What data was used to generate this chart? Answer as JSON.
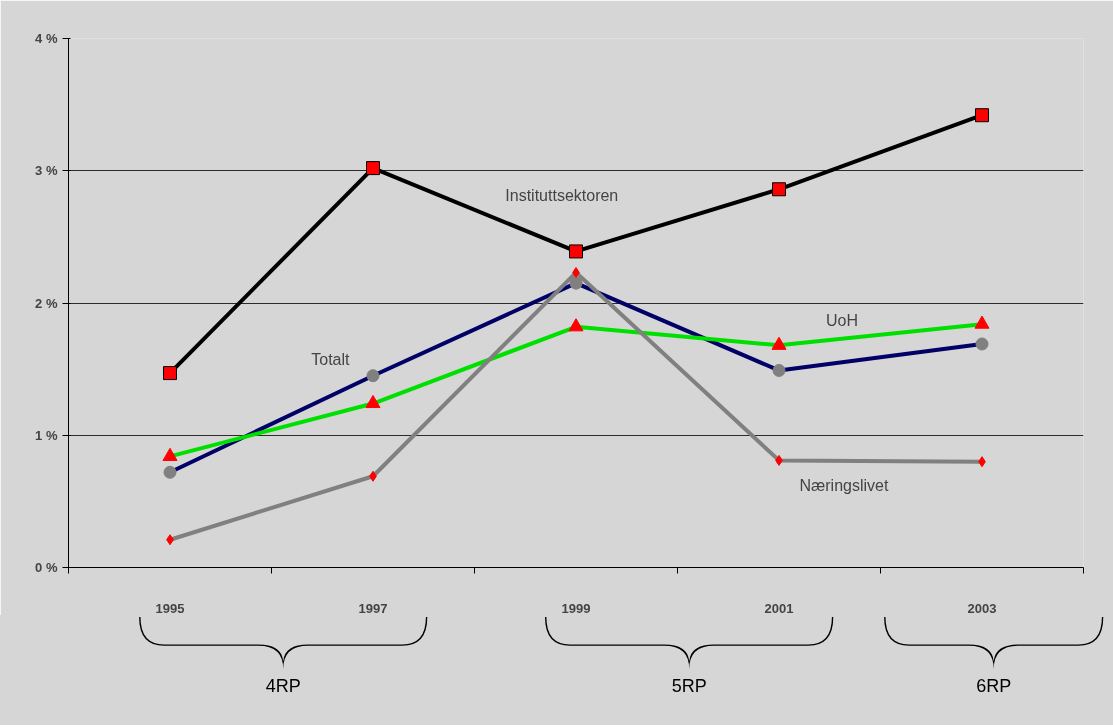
{
  "chart_data": {
    "type": "line",
    "categories": [
      "1995",
      "1997",
      "1999",
      "2001",
      "2003"
    ],
    "series": [
      {
        "name": "Instituttsektoren",
        "color": "#000000",
        "marker": "square",
        "values": [
          1.47,
          3.02,
          2.39,
          2.86,
          3.42
        ]
      },
      {
        "name": "Totalt",
        "color": "#000066",
        "marker": "circle",
        "values": [
          0.72,
          1.45,
          2.15,
          1.49,
          1.69
        ]
      },
      {
        "name": "UoH",
        "color": "#00e000",
        "marker": "triangle",
        "values": [
          0.84,
          1.24,
          1.82,
          1.68,
          1.84
        ]
      },
      {
        "name": "Næringslivet",
        "color": "#808080",
        "marker": "diamond",
        "values": [
          0.21,
          0.69,
          2.23,
          0.81,
          0.8
        ]
      }
    ],
    "ylim": [
      0,
      4
    ],
    "yticks": [
      {
        "value": 0,
        "label": "0 %"
      },
      {
        "value": 1,
        "label": "1 %"
      },
      {
        "value": 2,
        "label": "2 %"
      },
      {
        "value": 3,
        "label": "3 %"
      },
      {
        "value": 4,
        "label": "4 %"
      }
    ],
    "grid": "y",
    "legend": false,
    "line_style": "solid",
    "annotations": [
      "4RP",
      "5RP",
      "6RP"
    ]
  }
}
